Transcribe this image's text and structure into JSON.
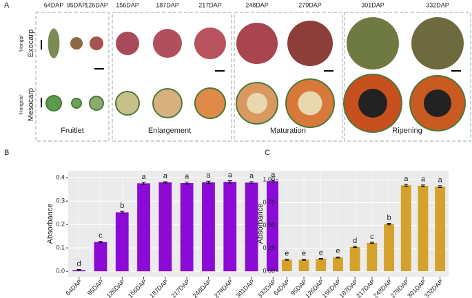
{
  "panel_a": {
    "label": "A",
    "stages": [
      "64DAP",
      "95DAP",
      "126DAP",
      "156DAP",
      "187DAP",
      "217DAP",
      "248DAP",
      "279DAP",
      "301DAP",
      "332DAP"
    ],
    "rows": [
      "Exocarp",
      "Mesocarp"
    ],
    "cultivars": [
      "'Hongpi'",
      "'Hongrou'"
    ],
    "groups": [
      "Fruitlet",
      "Enlargement",
      "Maturation",
      "Ripening"
    ]
  },
  "chart_data": [
    {
      "type": "bar",
      "panel_label": "B",
      "ylabel": "Absorbance",
      "color": "#8b0ad6",
      "categories": [
        "64DAP",
        "95DAP",
        "126DAP",
        "156DAP",
        "187DAP",
        "217DAP",
        "248DAP",
        "279DAP",
        "301DAP",
        "332DAP"
      ],
      "values": [
        0.005,
        0.125,
        0.252,
        0.376,
        0.38,
        0.377,
        0.38,
        0.382,
        0.379,
        0.385
      ],
      "errors": [
        0.003,
        0.003,
        0.004,
        0.004,
        0.003,
        0.004,
        0.005,
        0.005,
        0.004,
        0.004
      ],
      "letters": [
        "d",
        "c",
        "b",
        "a",
        "a",
        "a",
        "a",
        "a",
        "a",
        "a"
      ],
      "ylim": [
        -0.023,
        0.43
      ],
      "yticks": [
        {
          "value": 0,
          "label": "0.0"
        },
        0.1,
        0.2,
        0.3,
        0.4
      ],
      "grid": true
    },
    {
      "type": "bar",
      "panel_label": "C",
      "ylabel": "Absorbance",
      "color": "#d4a12a",
      "categories": [
        "64DAP",
        "95DAP",
        "126DAP",
        "156DAP",
        "187DAP",
        "217DAP",
        "248DAP",
        "279DAP",
        "301DAP",
        "332DAP"
      ],
      "values": [
        0.125,
        0.125,
        0.135,
        0.15,
        0.265,
        0.31,
        0.515,
        0.94,
        0.935,
        0.925
      ],
      "errors": [
        0.005,
        0.005,
        0.005,
        0.006,
        0.006,
        0.007,
        0.008,
        0.01,
        0.009,
        0.01
      ],
      "letters": [
        "e",
        "e",
        "e",
        "e",
        "d",
        "c",
        "b",
        "a",
        "a",
        "a"
      ],
      "ylim": [
        -0.06,
        1.1
      ],
      "yticks": [
        {
          "value": 0,
          "label": "0.00"
        },
        {
          "value": 0.25,
          "label": "0.25"
        },
        {
          "value": 0.5,
          "label": "0.50"
        },
        {
          "value": 0.75,
          "label": "0.75"
        },
        {
          "value": 1,
          "label": "1.00"
        }
      ],
      "grid": true
    }
  ]
}
